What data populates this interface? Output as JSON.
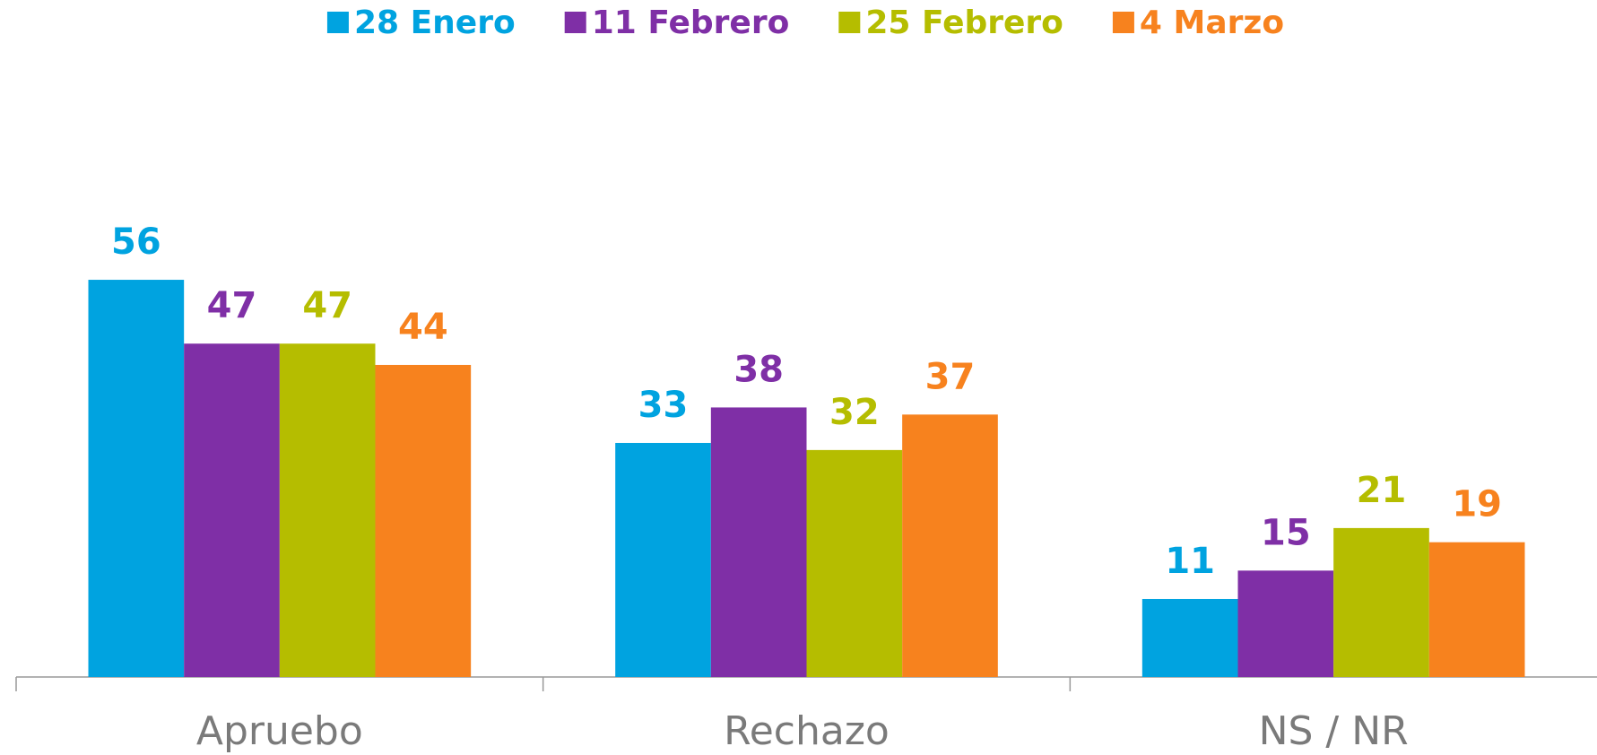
{
  "chart_data": {
    "type": "bar",
    "categories": [
      "Apruebo",
      "Rechazo",
      "NS / NR"
    ],
    "series": [
      {
        "name": "28 Enero",
        "color": "#00a3e0",
        "values": [
          56,
          33,
          11
        ]
      },
      {
        "name": "11 Febrero",
        "color": "#7f2fa6",
        "values": [
          47,
          38,
          15
        ]
      },
      {
        "name": "25 Febrero",
        "color": "#b5bd00",
        "values": [
          47,
          32,
          21
        ]
      },
      {
        "name": "4 Marzo",
        "color": "#f7821e",
        "values": [
          44,
          37,
          19
        ]
      }
    ],
    "legend": "top"
  }
}
